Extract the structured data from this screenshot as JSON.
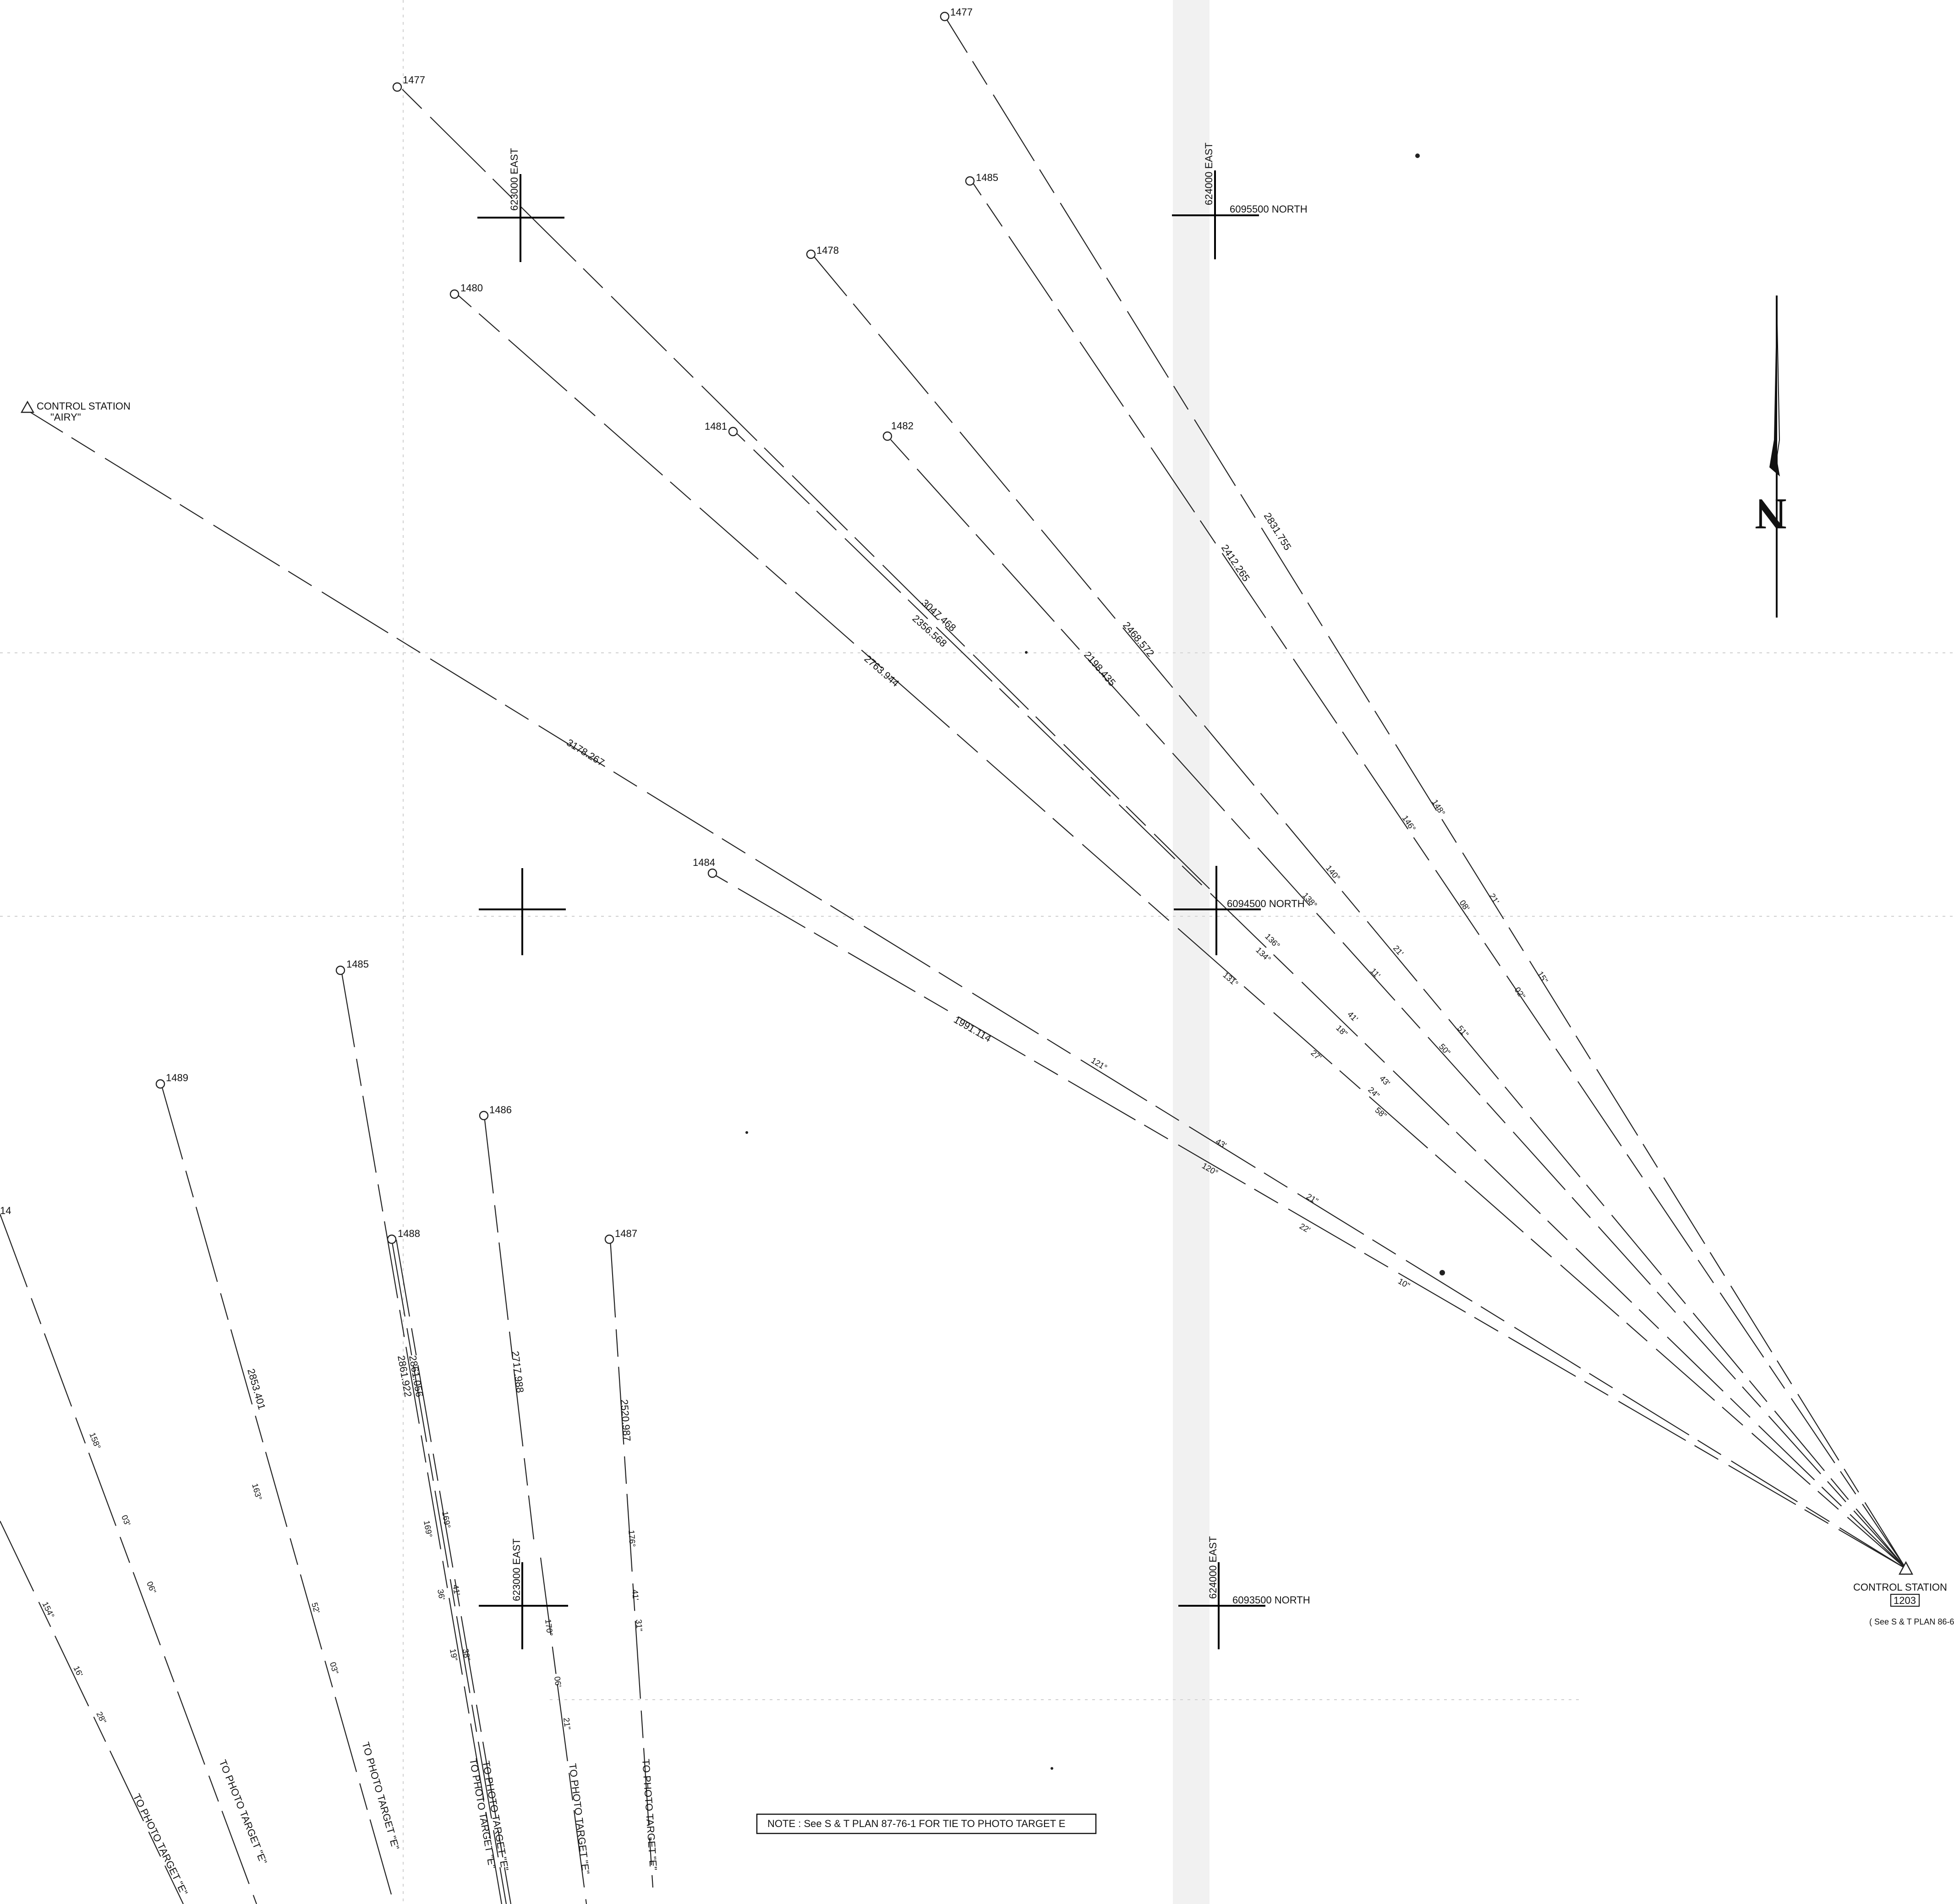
{
  "control_stations": {
    "airy": {
      "line1": "CONTROL STATION",
      "line2": "\"AIRY\""
    },
    "s1203": {
      "line1": "CONTROL STATION",
      "number": "1203",
      "ref": "( See  S & T PLAN 86-67-I"
    }
  },
  "grid": {
    "e623000": "623000 EAST",
    "e624000": "624000 EAST",
    "n6095500": "6095500 NORTH",
    "n6094500": "6094500 NORTH",
    "n6093500": "6093500 NORTH"
  },
  "stations": {
    "s1477a": "1477",
    "s1477b": "1477",
    "s1485a": "1485",
    "s1478": "1478",
    "s1480": "1480",
    "s1481": "1481",
    "s1482": "1482",
    "s1484": "1484",
    "s1485b": "1485",
    "s1489": "1489",
    "s1486": "1486",
    "s1488": "1488",
    "s1487": "1487",
    "s148x": "14"
  },
  "distances": {
    "d3178": "3178.267",
    "d3047": "3047.468",
    "d2356": "2356.568",
    "d2763": "2763.944",
    "d1991": "1991.114",
    "d2468": "2468.572",
    "d2198": "2198.435",
    "d2412": "2412.265",
    "d2831": "2831.755",
    "d2853": "2853.401",
    "d2861a": "2861.056",
    "d2861b": "2861.922",
    "d2717": "2717.988",
    "d2520": "2520.987"
  },
  "bearings": {
    "b148a": "148°",
    "b21a": "21'",
    "b15a": "15\"",
    "b146": "146°",
    "b08a": "08'",
    "b02a": "02\"",
    "b140": "140°",
    "b21b": "21'",
    "b51": "51\"",
    "b138": "138°",
    "b11": "11'",
    "b50": "50\"",
    "b136": "136°",
    "b134": "134°",
    "b41": "41'",
    "b18": "18\"",
    "b43a": "43'",
    "b24": "24\"",
    "b131": "131°",
    "b27": "27'",
    "b58": "58\"",
    "b121": "121°",
    "b43b": "43'",
    "b21c": "21\"",
    "b120": "120°",
    "b22": "22'",
    "b10": "10\"",
    "b158": "158°",
    "b03a": "03'",
    "b06": "06\"",
    "b154": "154°",
    "b16": "16'",
    "b28": "28\"",
    "b163": "163°",
    "b52": "52'",
    "b03b": "03\"",
    "b169a": "169°",
    "b169b": "169°",
    "b36": "36'",
    "b41b": "41'",
    "b19": "19\"",
    "b38": "38\"",
    "b170": "170°",
    "b06b": "06'",
    "b21d": "21\"",
    "b176": "176°",
    "b41c": "41'",
    "b31": "31\""
  },
  "photo_targets": {
    "t1": "TO PHOTO TARGET \"E\"",
    "t2": "TO PHOTO TARGET \"E\"",
    "t3": "TO PHOTO TARGET \"E\"",
    "t4": "TO PHOTO TARGET \"E\"",
    "t5": "TO PHOTO TARGET \"E\"",
    "t6": "TO PHOTO TARGET \"E\"",
    "t7": "TO PHOTO TARGET \"E\""
  },
  "note": "NOTE : See  S & T  PLAN 87-76-1  FOR TIE TO PHOTO TARGET E",
  "north_arrow_letter": "N"
}
